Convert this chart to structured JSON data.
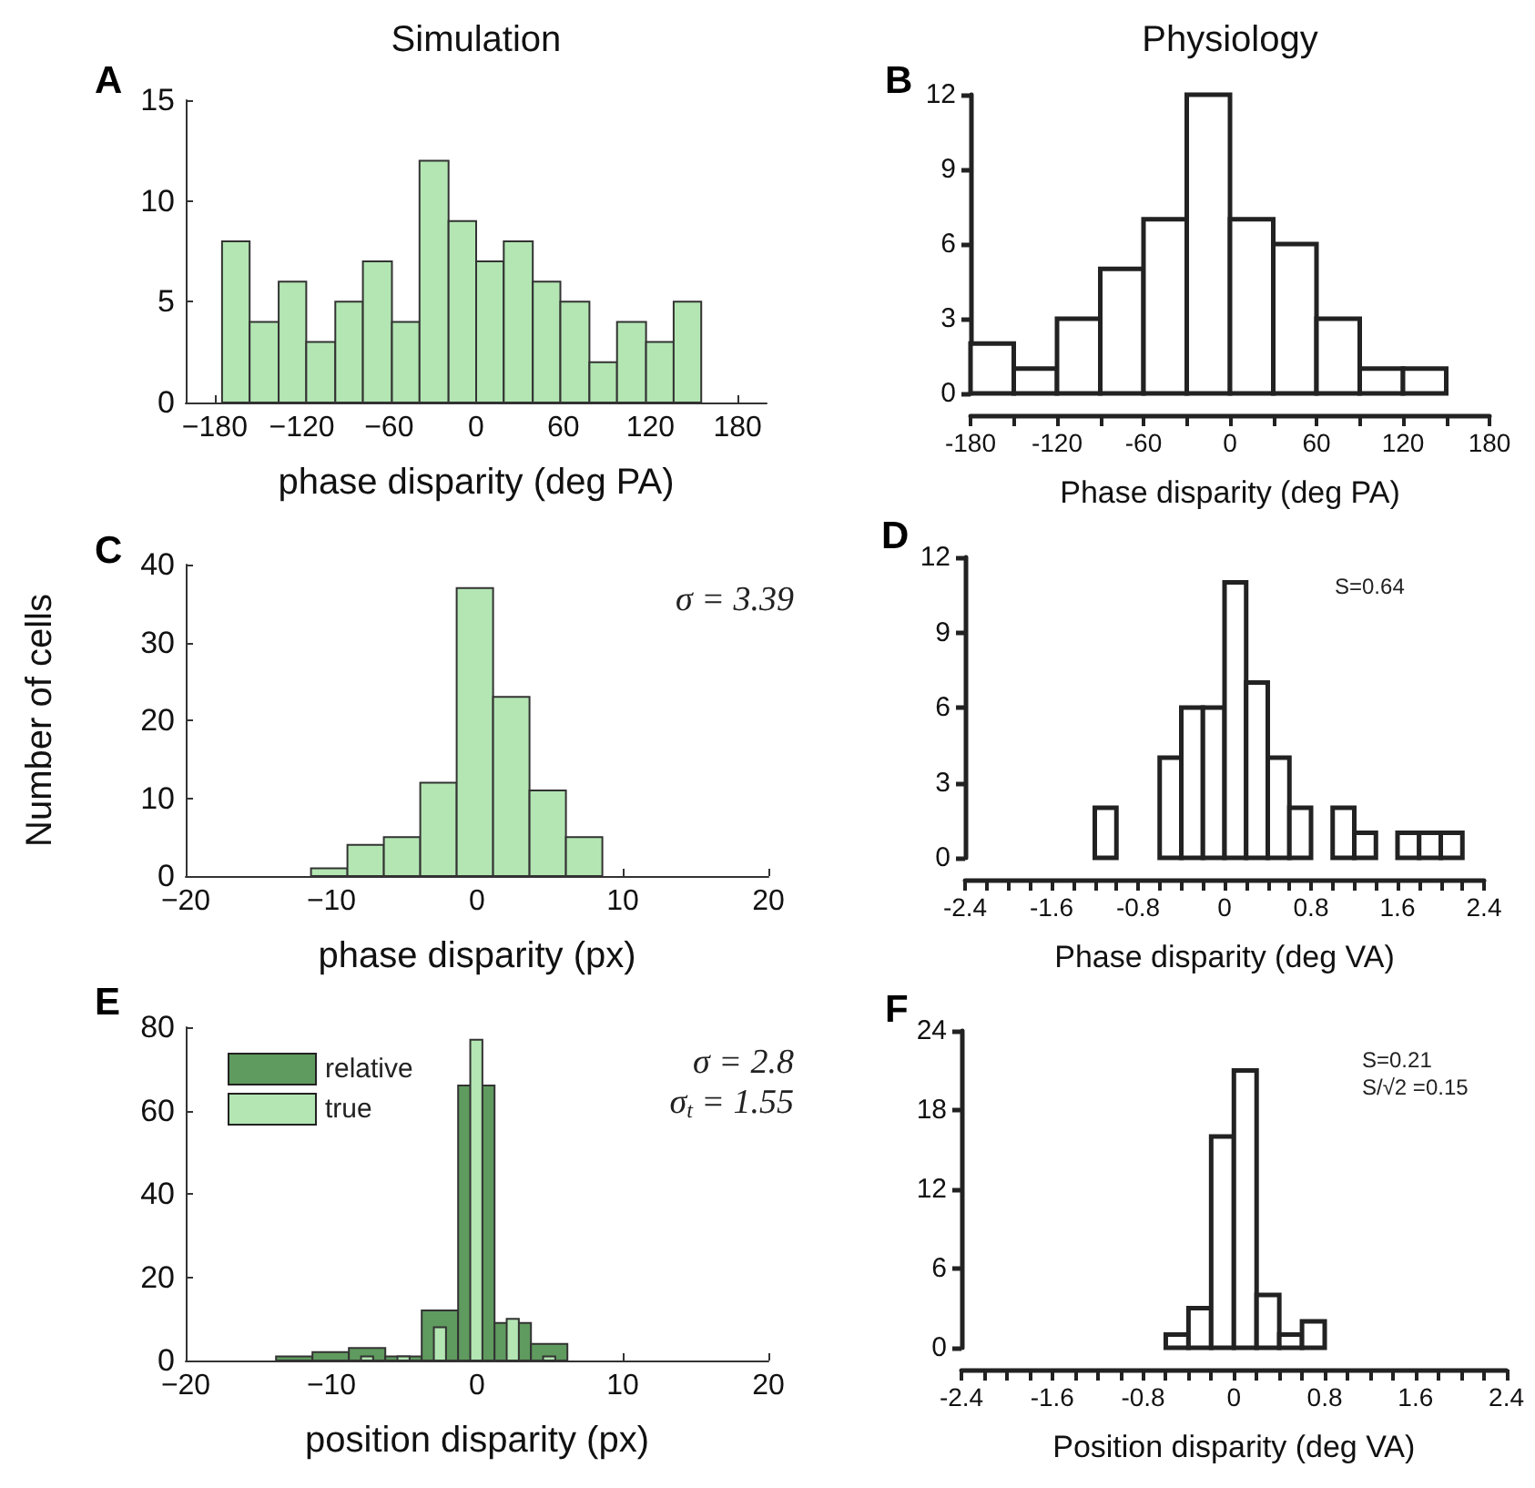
{
  "chart_data": [
    {
      "type": "histogram",
      "title": "A",
      "subtitle": "Simulation",
      "xlabel": "phase disparity (deg PA)",
      "bins": [
        -175,
        -156,
        -136,
        -117,
        -97,
        -78,
        -58,
        -39,
        -19,
        0,
        19,
        39,
        58,
        78,
        97,
        117,
        136,
        155
      ],
      "values": [
        8,
        4,
        6,
        3,
        5,
        7,
        4,
        12,
        9,
        7,
        8,
        6,
        5,
        2,
        4,
        3,
        5
      ],
      "color": "#b3e6b3",
      "xlim": [
        -200,
        200
      ],
      "xticks": [
        {
          "value": -180,
          "label": "−180"
        },
        {
          "value": -120,
          "label": "−120"
        },
        {
          "value": -60,
          "label": "−60"
        },
        0,
        60,
        120,
        180
      ],
      "ylim": [
        0,
        15
      ],
      "yticks": [
        0,
        5,
        10,
        15
      ],
      "grid": false
    },
    {
      "type": "histogram",
      "title": "B",
      "subtitle": "Physiology",
      "xlabel": "Phase disparity (deg PA)",
      "bins": [
        -180,
        -150,
        -120,
        -90,
        -60,
        -30,
        0,
        30,
        60,
        90,
        120,
        150,
        180
      ],
      "values": [
        2,
        1,
        3,
        5,
        7,
        12,
        7,
        6,
        3,
        1,
        1,
        0
      ],
      "color": "#ffffff",
      "xlim": [
        -180,
        180
      ],
      "xticks": [
        -180,
        {
          "value": -150,
          "label": null
        },
        -120,
        {
          "value": -90,
          "label": null
        },
        -60,
        {
          "value": -30,
          "label": null
        },
        0,
        {
          "value": 30,
          "label": null
        },
        60,
        {
          "value": 90,
          "label": null
        },
        120,
        {
          "value": 150,
          "label": null
        },
        180
      ],
      "ylim": [
        0,
        12
      ],
      "yticks": [
        0,
        3,
        6,
        9,
        12
      ],
      "grid": false
    },
    {
      "type": "histogram",
      "title": "C",
      "ylabel": "Number of cells",
      "xlabel": "phase disparity (px)",
      "annotations": [
        "σ = 3.39"
      ],
      "bins": [
        -11.4,
        -8.9,
        -6.4,
        -3.9,
        -1.4,
        1.1,
        3.6,
        6.1,
        8.6
      ],
      "values": [
        1,
        4,
        5,
        12,
        37,
        23,
        11,
        5
      ],
      "color": "#b3e6b3",
      "xlim": [
        -20,
        20
      ],
      "xticks": [
        {
          "value": -20,
          "label": "−20"
        },
        {
          "value": -10,
          "label": "−10"
        },
        0,
        10,
        20
      ],
      "ylim": [
        0,
        40
      ],
      "yticks": [
        0,
        10,
        20,
        30,
        40
      ],
      "grid": false
    },
    {
      "type": "histogram",
      "title": "D",
      "xlabel": "Phase disparity (deg VA)",
      "annotations": [
        "S=0.64"
      ],
      "bins": [
        -2.4,
        -2.2,
        -2.0,
        -1.8,
        -1.6,
        -1.4,
        -1.2,
        -1.0,
        -0.8,
        -0.6,
        -0.4,
        -0.2,
        0,
        0.2,
        0.4,
        0.6,
        0.8,
        1.0,
        1.2,
        1.4,
        1.6,
        1.8,
        2.0,
        2.2,
        2.4
      ],
      "values": [
        0,
        0,
        0,
        0,
        0,
        0,
        2,
        0,
        0,
        4,
        6,
        6,
        11,
        7,
        4,
        2,
        0,
        2,
        1,
        0,
        1,
        1,
        1,
        0
      ],
      "color": "#ffffff",
      "xlim": [
        -2.4,
        2.4
      ],
      "xticks": [
        -2.4,
        {
          "value": -2.2,
          "label": null
        },
        {
          "value": -2.0,
          "label": null
        },
        {
          "value": -1.8,
          "label": null
        },
        -1.6,
        {
          "value": -1.4,
          "label": null
        },
        {
          "value": -1.2,
          "label": null
        },
        {
          "value": -1.0,
          "label": null
        },
        -0.8,
        {
          "value": -0.6,
          "label": null
        },
        {
          "value": -0.4,
          "label": null
        },
        {
          "value": -0.2,
          "label": null
        },
        0,
        {
          "value": 0.2,
          "label": null
        },
        {
          "value": 0.4,
          "label": null
        },
        {
          "value": 0.6,
          "label": null
        },
        0.8,
        {
          "value": 1.0,
          "label": null
        },
        {
          "value": 1.2,
          "label": null
        },
        {
          "value": 1.4,
          "label": null
        },
        1.6,
        {
          "value": 1.8,
          "label": null
        },
        {
          "value": 2.0,
          "label": null
        },
        {
          "value": 2.2,
          "label": null
        },
        2.4
      ],
      "ylim": [
        0,
        12
      ],
      "yticks": [
        0,
        3,
        6,
        9,
        12
      ],
      "grid": false
    },
    {
      "type": "histogram",
      "title": "E",
      "xlabel": "position disparity (px)",
      "annotations": [
        "σ = 2.8",
        "σ$_{t}$ = 1.55"
      ],
      "bins": [
        -13.8,
        -11.3,
        -8.8,
        -6.3,
        -3.8,
        -1.3,
        1.2,
        3.7,
        6.2
      ],
      "series": [
        {
          "name": "relative",
          "color": "#5f9a5f",
          "values": [
            1,
            2,
            3,
            1,
            12,
            66,
            9,
            4
          ]
        },
        {
          "name": "true",
          "color": "#b3e6b3",
          "values": [
            0,
            0,
            1,
            1,
            8,
            77,
            10,
            1
          ]
        }
      ],
      "legend": "top left",
      "xlim": [
        -20,
        20
      ],
      "xticks": [
        {
          "value": -20,
          "label": "−20"
        },
        {
          "value": -10,
          "label": "−10"
        },
        0,
        10,
        20
      ],
      "ylim": [
        0,
        80
      ],
      "yticks": [
        0,
        20,
        40,
        60,
        80
      ],
      "grid": false
    },
    {
      "type": "histogram",
      "title": "F",
      "xlabel": "Position disparity (deg VA)",
      "annotations": [
        "S=0.21",
        "S/√2 =0.15"
      ],
      "bins": [
        -2.4,
        -2.2,
        -2.0,
        -1.8,
        -1.6,
        -1.4,
        -1.2,
        -1.0,
        -0.8,
        -0.6,
        -0.4,
        -0.2,
        0,
        0.2,
        0.4,
        0.6,
        0.8,
        1.0,
        1.2,
        1.4,
        1.6,
        1.8,
        2.0,
        2.2,
        2.4
      ],
      "values": [
        0,
        0,
        0,
        0,
        0,
        0,
        0,
        0,
        0,
        1,
        3,
        16,
        21,
        4,
        1,
        2,
        0,
        0,
        0,
        0,
        0,
        0,
        0,
        0
      ],
      "color": "#ffffff",
      "xlim": [
        -2.4,
        2.4
      ],
      "xticks": [
        -2.4,
        {
          "value": -2.2,
          "label": null
        },
        {
          "value": -2.0,
          "label": null
        },
        {
          "value": -1.8,
          "label": null
        },
        -1.6,
        {
          "value": -1.4,
          "label": null
        },
        {
          "value": -1.2,
          "label": null
        },
        {
          "value": -1.0,
          "label": null
        },
        -0.8,
        {
          "value": -0.6,
          "label": null
        },
        {
          "value": -0.4,
          "label": null
        },
        {
          "value": -0.2,
          "label": null
        },
        0,
        {
          "value": 0.2,
          "label": null
        },
        {
          "value": 0.4,
          "label": null
        },
        {
          "value": 0.6,
          "label": null
        },
        0.8,
        {
          "value": 1.0,
          "label": null
        },
        {
          "value": 1.2,
          "label": null
        },
        {
          "value": 1.4,
          "label": null
        },
        1.6,
        {
          "value": 1.8,
          "label": null
        },
        {
          "value": 2.0,
          "label": null
        },
        {
          "value": 2.2,
          "label": null
        },
        2.4
      ],
      "ylim": [
        0,
        24
      ],
      "yticks": [
        0,
        6,
        12,
        18,
        24
      ],
      "grid": false
    }
  ]
}
